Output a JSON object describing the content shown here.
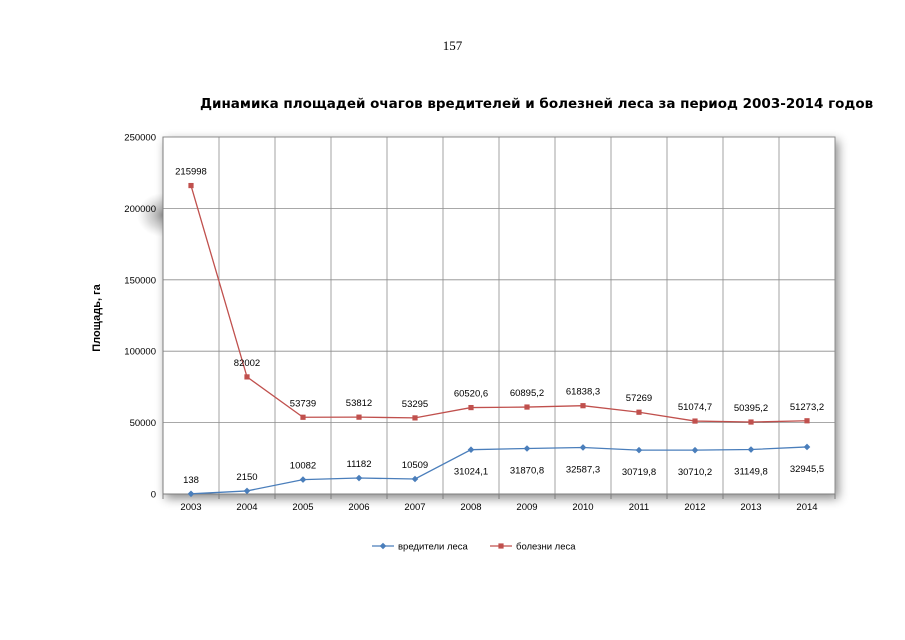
{
  "page": {
    "number": "157"
  },
  "chart_data": {
    "type": "line",
    "title": "Динамика площадей очагов вредителей и болезней леса за период 2003-2014 годов",
    "xlabel": "",
    "ylabel": "Площадь, га",
    "ylim": [
      0,
      250000
    ],
    "yticks": [
      0,
      50000,
      100000,
      150000,
      200000,
      250000
    ],
    "ytick_labels": [
      "0",
      "50000",
      "100000",
      "150000",
      "200000",
      "250000"
    ],
    "categories": [
      "2003",
      "2004",
      "2005",
      "2006",
      "2007",
      "2008",
      "2009",
      "2010",
      "2011",
      "2012",
      "2013",
      "2014"
    ],
    "grid": "both",
    "legend_position": "bottom",
    "series": [
      {
        "name": "вредители леса",
        "color": "#4a7ebb",
        "marker": "diamond",
        "values": [
          138,
          2150,
          10082,
          11182,
          10509,
          31024.1,
          31870.8,
          32587.3,
          30719.8,
          30710.2,
          31149.8,
          32945.5
        ],
        "labels": [
          "138",
          "2150",
          "10082",
          "11182",
          "10509",
          "31024,1",
          "31870,8",
          "32587,3",
          "30719,8",
          "30710,2",
          "31149,8",
          "32945,5"
        ]
      },
      {
        "name": "болезни леса",
        "color": "#c0504d",
        "marker": "square",
        "values": [
          215998,
          82002,
          53739,
          53812,
          53295,
          60520.6,
          60895.2,
          61838.3,
          57269,
          51074.7,
          50395.2,
          51273.2
        ],
        "labels": [
          "215998",
          "82002",
          "53739",
          "53812",
          "53295",
          "60520,6",
          "60895,2",
          "61838,3",
          "57269",
          "51074,7",
          "50395,2",
          "51273,2"
        ]
      }
    ]
  }
}
